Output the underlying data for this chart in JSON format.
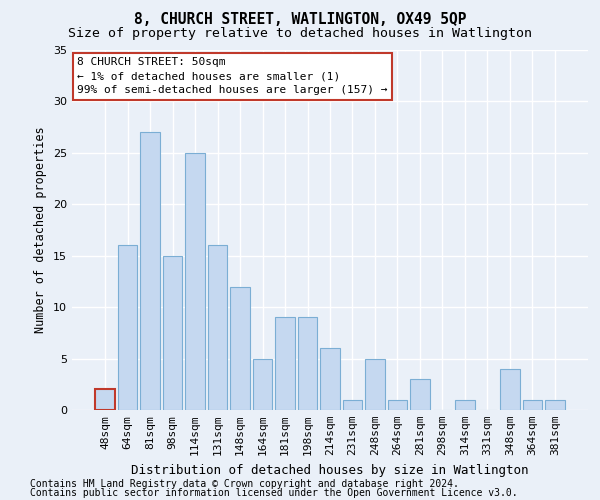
{
  "title": "8, CHURCH STREET, WATLINGTON, OX49 5QP",
  "subtitle": "Size of property relative to detached houses in Watlington",
  "xlabel": "Distribution of detached houses by size in Watlington",
  "ylabel": "Number of detached properties",
  "categories": [
    "48sqm",
    "64sqm",
    "81sqm",
    "98sqm",
    "114sqm",
    "131sqm",
    "148sqm",
    "164sqm",
    "181sqm",
    "198sqm",
    "214sqm",
    "231sqm",
    "248sqm",
    "264sqm",
    "281sqm",
    "298sqm",
    "314sqm",
    "331sqm",
    "348sqm",
    "364sqm",
    "381sqm"
  ],
  "values": [
    2,
    16,
    27,
    15,
    25,
    16,
    12,
    5,
    9,
    9,
    6,
    1,
    5,
    1,
    3,
    0,
    1,
    0,
    4,
    1,
    1
  ],
  "bar_color": "#c5d8f0",
  "bar_edge_color": "#7baed4",
  "highlight_index": 0,
  "highlight_edge_color": "#c0392b",
  "ylim": [
    0,
    35
  ],
  "yticks": [
    0,
    5,
    10,
    15,
    20,
    25,
    30,
    35
  ],
  "annotation_title": "8 CHURCH STREET: 50sqm",
  "annotation_line1": "← 1% of detached houses are smaller (1)",
  "annotation_line2": "99% of semi-detached houses are larger (157) →",
  "annotation_box_color": "#ffffff",
  "annotation_box_edge_color": "#c0392b",
  "footnote1": "Contains HM Land Registry data © Crown copyright and database right 2024.",
  "footnote2": "Contains public sector information licensed under the Open Government Licence v3.0.",
  "bg_color": "#eaf0f8",
  "plot_bg_color": "#eaf0f8",
  "grid_color": "#ffffff",
  "title_fontsize": 10.5,
  "subtitle_fontsize": 9.5,
  "xlabel_fontsize": 9,
  "ylabel_fontsize": 8.5,
  "tick_fontsize": 8,
  "annotation_fontsize": 8,
  "footnote_fontsize": 7
}
